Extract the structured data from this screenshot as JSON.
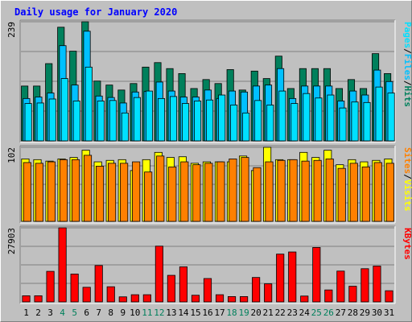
{
  "colors": {
    "background": "#C0C0C0",
    "title": "#0000FF",
    "hits": "#00805C",
    "files": "#00C0FF",
    "pages": "#00E0FF",
    "visits": "#FFFF00",
    "sites": "#FF8000",
    "kbytes": "#FF0000",
    "weekend_label": "#00805C",
    "weekday_label": "#000000"
  },
  "chart_data": {
    "type": "bar",
    "title": "Daily usage for January 2020",
    "categories": [
      "1",
      "2",
      "3",
      "4",
      "5",
      "6",
      "7",
      "8",
      "9",
      "10",
      "11",
      "12",
      "13",
      "14",
      "15",
      "16",
      "17",
      "18",
      "19",
      "20",
      "21",
      "22",
      "23",
      "24",
      "25",
      "26",
      "27",
      "28",
      "29",
      "30",
      "31"
    ],
    "weekend_days": [
      "4",
      "5",
      "11",
      "12",
      "18",
      "19",
      "25",
      "26"
    ],
    "panels": [
      {
        "name": "requests",
        "y_max_label": "239",
        "ylim": [
          0,
          239
        ],
        "legend": [
          "Pages",
          "/",
          "Files",
          "/",
          "Hits"
        ],
        "series": [
          {
            "name": "Hits",
            "values": [
              110,
              110,
              155,
              228,
              180,
              239,
              120,
              112,
              102,
              115,
              148,
              157,
              145,
              135,
              105,
              123,
              115,
              143,
              102,
              140,
              125,
              170,
              105,
              145,
              145,
              145,
              105,
              123,
              105,
              175,
              135
            ]
          },
          {
            "name": "Files",
            "values": [
              85,
              88,
              96,
              191,
              112,
              220,
              90,
              87,
              76,
              98,
              99,
              118,
              100,
              88,
              88,
              102,
              85,
              100,
              98,
              110,
              112,
              145,
              85,
              110,
              110,
              110,
              80,
              100,
              92,
              142,
              119
            ]
          },
          {
            "name": "Pages",
            "values": [
              75,
              76,
              84,
              125,
              80,
              148,
              80,
              81,
              56,
              87,
              100,
              85,
              89,
              75,
              80,
              82,
              92,
              72,
              56,
              81,
              72,
              100,
              75,
              95,
              86,
              92,
              66,
              78,
              77,
              108,
              96
            ]
          }
        ]
      },
      {
        "name": "visitors",
        "y_max_label": "102",
        "ylim": [
          0,
          102
        ],
        "legend": [
          "Sites",
          "/",
          "Visits"
        ],
        "series": [
          {
            "name": "Visits",
            "values": [
              86,
              85,
              83,
              86,
              88,
              98,
              82,
              84,
              85,
              70,
              85,
              95,
              88,
              89,
              80,
              82,
              82,
              82,
              90,
              70,
              102,
              85,
              85,
              95,
              88,
              98,
              78,
              85,
              82,
              84,
              86
            ]
          },
          {
            "name": "Sites",
            "values": [
              81,
              80,
              82,
              85,
              85,
              91,
              76,
              80,
              80,
              82,
              68,
              90,
              75,
              82,
              78,
              80,
              82,
              86,
              88,
              74,
              82,
              84,
              85,
              83,
              84,
              86,
              73,
              80,
              75,
              81,
              80
            ]
          }
        ]
      },
      {
        "name": "volume",
        "y_max_label": "27903",
        "ylim": [
          0,
          27903
        ],
        "legend": [
          "KBytes"
        ],
        "series": [
          {
            "name": "KBytes",
            "values": [
              2300,
              2300,
              11500,
              27903,
              10500,
              5500,
              13700,
              5700,
              1900,
              2700,
              2700,
              21000,
              10000,
              13200,
              2500,
              8800,
              2700,
              2000,
              2000,
              9200,
              6800,
              18000,
              18800,
              2200,
              20500,
              4500,
              11600,
              5900,
              12500,
              13500,
              4200
            ]
          }
        ]
      }
    ]
  }
}
